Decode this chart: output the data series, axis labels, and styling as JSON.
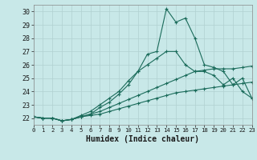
{
  "bg_color": "#c8e8e8",
  "grid_color": "#b0d0d0",
  "line_color": "#1a6b5a",
  "xlabel": "Humidex (Indice chaleur)",
  "xlim": [
    0,
    23
  ],
  "ylim": [
    21.5,
    30.5
  ],
  "xticks": [
    0,
    1,
    2,
    3,
    4,
    5,
    6,
    7,
    8,
    9,
    10,
    11,
    12,
    13,
    14,
    15,
    16,
    17,
    18,
    19,
    20,
    21,
    22,
    23
  ],
  "yticks": [
    22,
    23,
    24,
    25,
    26,
    27,
    28,
    29,
    30
  ],
  "line1": {
    "x": [
      0,
      1,
      2,
      3,
      4,
      5,
      6,
      7,
      8,
      9,
      10,
      11,
      12,
      13,
      14,
      15,
      16,
      17,
      18,
      19,
      20,
      21,
      22,
      23
    ],
    "y": [
      22.1,
      22.0,
      22.0,
      21.8,
      21.9,
      22.1,
      22.2,
      22.3,
      22.5,
      22.7,
      22.9,
      23.1,
      23.3,
      23.5,
      23.7,
      23.9,
      24.0,
      24.1,
      24.2,
      24.3,
      24.4,
      24.5,
      24.6,
      24.7
    ]
  },
  "line2": {
    "x": [
      0,
      1,
      2,
      3,
      4,
      5,
      6,
      7,
      8,
      9,
      10,
      11,
      12,
      13,
      14,
      15,
      16,
      17,
      18,
      19,
      20,
      21,
      22,
      23
    ],
    "y": [
      22.1,
      22.0,
      22.0,
      21.8,
      21.9,
      22.1,
      22.3,
      22.5,
      22.8,
      23.1,
      23.4,
      23.7,
      24.0,
      24.3,
      24.6,
      24.9,
      25.2,
      25.5,
      25.6,
      25.7,
      25.7,
      25.7,
      25.8,
      25.9
    ]
  },
  "line3": {
    "x": [
      0,
      1,
      2,
      3,
      4,
      5,
      6,
      7,
      8,
      9,
      10,
      11,
      12,
      13,
      14,
      15,
      16,
      17,
      18,
      19,
      20,
      21,
      22,
      23
    ],
    "y": [
      22.1,
      22.0,
      22.0,
      21.8,
      21.9,
      22.2,
      22.5,
      23.0,
      23.5,
      24.0,
      24.8,
      25.5,
      26.0,
      26.5,
      27.0,
      27.0,
      26.0,
      25.5,
      25.5,
      25.2,
      24.5,
      25.0,
      24.0,
      23.5
    ]
  },
  "line4": {
    "x": [
      0,
      1,
      2,
      3,
      4,
      5,
      6,
      7,
      8,
      9,
      10,
      11,
      12,
      13,
      14,
      15,
      16,
      17,
      18,
      19,
      20,
      21,
      22,
      23
    ],
    "y": [
      22.1,
      22.0,
      22.0,
      21.8,
      21.9,
      22.1,
      22.3,
      22.8,
      23.2,
      23.8,
      24.5,
      25.5,
      26.8,
      27.0,
      30.2,
      29.2,
      29.5,
      28.0,
      26.0,
      25.8,
      25.5,
      24.5,
      25.0,
      23.5
    ]
  }
}
